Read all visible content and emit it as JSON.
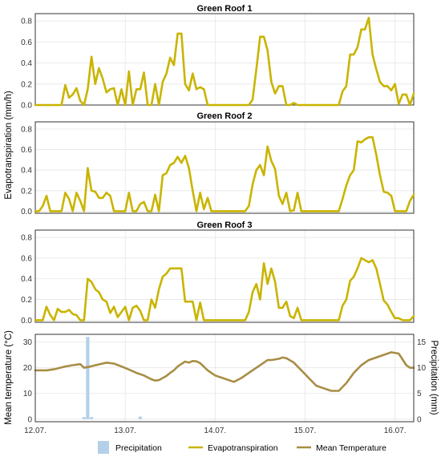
{
  "chart_data": [
    {
      "type": "line",
      "title": "Green Roof 1",
      "ylim": [
        0,
        0.87
      ],
      "yticks": [
        "0.0",
        "0.2",
        "0.4",
        "0.6",
        "0.8"
      ],
      "xlim": [
        0,
        101
      ],
      "series": [
        {
          "name": "Evapotranspiration",
          "color": "#c9b400",
          "x": [
            0,
            1,
            2,
            3,
            4,
            5,
            6,
            7,
            8,
            9,
            10,
            11,
            12,
            13,
            14,
            15,
            16,
            17,
            18,
            19,
            20,
            21,
            22,
            23,
            24,
            25,
            26,
            27,
            28,
            29,
            30,
            31,
            32,
            33,
            34,
            35,
            36,
            37,
            38,
            39,
            40,
            41,
            42,
            43,
            44,
            45,
            46,
            47,
            48,
            49,
            50,
            51,
            52,
            53,
            54,
            55,
            56,
            57,
            58,
            59,
            60,
            61,
            62,
            63,
            64,
            65,
            66,
            67,
            68,
            69,
            70,
            71,
            72,
            73,
            74,
            75,
            76,
            77,
            78,
            79,
            80,
            81,
            82,
            83,
            84,
            85,
            86,
            87,
            88,
            89,
            90,
            91,
            92,
            93,
            94,
            95,
            96,
            97,
            98,
            99,
            100,
            101
          ],
          "y": [
            0.0,
            0.0,
            0.0,
            0.0,
            0.0,
            0.0,
            0.0,
            0.0,
            0.19,
            0.07,
            0.1,
            0.16,
            0.04,
            0.0,
            0.15,
            0.46,
            0.2,
            0.35,
            0.25,
            0.12,
            0.15,
            0.16,
            0.0,
            0.15,
            0.0,
            0.32,
            0.0,
            0.15,
            0.15,
            0.31,
            0.0,
            0.0,
            0.2,
            0.0,
            0.22,
            0.3,
            0.45,
            0.38,
            0.68,
            0.68,
            0.2,
            0.14,
            0.3,
            0.15,
            0.17,
            0.15,
            0.0,
            0.0,
            0.0,
            0.0,
            0.0,
            0.0,
            0.0,
            0.0,
            0.0,
            0.0,
            0.0,
            0.0,
            0.05,
            0.34,
            0.65,
            0.65,
            0.52,
            0.22,
            0.11,
            0.18,
            0.18,
            0.0,
            0.0,
            0.02,
            0.0,
            0.0,
            0.0,
            0.0,
            0.0,
            0.0,
            0.0,
            0.0,
            0.0,
            0.0,
            0.0,
            0.0,
            0.13,
            0.18,
            0.48,
            0.48,
            0.55,
            0.72,
            0.72,
            0.83,
            0.48,
            0.34,
            0.22,
            0.18,
            0.18,
            0.14,
            0.2,
            0.01,
            0.1,
            0.1,
            0.0,
            0.11
          ]
        }
      ]
    },
    {
      "type": "line",
      "title": "Green Roof 2",
      "ylim": [
        -0.02,
        0.87
      ],
      "yticks": [
        "0.0",
        "0.2",
        "0.4",
        "0.6",
        "0.8"
      ],
      "xlim": [
        0,
        101
      ],
      "series": [
        {
          "name": "Evapotranspiration",
          "color": "#c9b400",
          "x": [
            0,
            1,
            2,
            3,
            4,
            5,
            6,
            7,
            8,
            9,
            10,
            11,
            12,
            13,
            14,
            15,
            16,
            17,
            18,
            19,
            20,
            21,
            22,
            23,
            24,
            25,
            26,
            27,
            28,
            29,
            30,
            31,
            32,
            33,
            34,
            35,
            36,
            37,
            38,
            39,
            40,
            41,
            42,
            43,
            44,
            45,
            46,
            47,
            48,
            49,
            50,
            51,
            52,
            53,
            54,
            55,
            56,
            57,
            58,
            59,
            60,
            61,
            62,
            63,
            64,
            65,
            66,
            67,
            68,
            69,
            70,
            71,
            72,
            73,
            74,
            75,
            76,
            77,
            78,
            79,
            80,
            81,
            82,
            83,
            84,
            85,
            86,
            87,
            88,
            89,
            90,
            91,
            92,
            93,
            94,
            95,
            96,
            97,
            98,
            99,
            100,
            101
          ],
          "y": [
            0.0,
            0.0,
            0.05,
            0.15,
            0.0,
            0.0,
            0.0,
            0.0,
            0.18,
            0.12,
            0.0,
            0.18,
            0.1,
            0.0,
            0.42,
            0.2,
            0.19,
            0.13,
            0.13,
            0.18,
            0.15,
            0.0,
            0.0,
            0.0,
            0.0,
            0.18,
            0.0,
            0.0,
            0.07,
            0.09,
            0.0,
            0.0,
            0.16,
            0.0,
            0.35,
            0.37,
            0.45,
            0.47,
            0.53,
            0.47,
            0.54,
            0.42,
            0.2,
            0.0,
            0.18,
            0.02,
            0.13,
            0.0,
            0.0,
            0.0,
            0.0,
            0.0,
            0.0,
            0.0,
            0.0,
            0.0,
            0.0,
            0.05,
            0.26,
            0.4,
            0.45,
            0.35,
            0.63,
            0.49,
            0.41,
            0.15,
            0.07,
            0.18,
            0.0,
            0.01,
            0.18,
            0.0,
            0.0,
            0.0,
            0.0,
            0.0,
            0.0,
            0.0,
            0.0,
            0.0,
            0.0,
            0.0,
            0.12,
            0.25,
            0.35,
            0.4,
            0.68,
            0.67,
            0.7,
            0.72,
            0.72,
            0.55,
            0.35,
            0.19,
            0.18,
            0.15,
            0.0,
            0.0,
            0.0,
            0.0,
            0.1,
            0.16
          ]
        }
      ]
    },
    {
      "type": "line",
      "title": "Green Roof 3",
      "ylim": [
        -0.02,
        0.87
      ],
      "yticks": [
        "0.0",
        "0.2",
        "0.4",
        "0.6",
        "0.8"
      ],
      "xlim": [
        0,
        101
      ],
      "series": [
        {
          "name": "Evapotranspiration",
          "color": "#c9b400",
          "x": [
            0,
            1,
            2,
            3,
            4,
            5,
            6,
            7,
            8,
            9,
            10,
            11,
            12,
            13,
            14,
            15,
            16,
            17,
            18,
            19,
            20,
            21,
            22,
            23,
            24,
            25,
            26,
            27,
            28,
            29,
            30,
            31,
            32,
            33,
            34,
            35,
            36,
            37,
            38,
            39,
            40,
            41,
            42,
            43,
            44,
            45,
            46,
            47,
            48,
            49,
            50,
            51,
            52,
            53,
            54,
            55,
            56,
            57,
            58,
            59,
            60,
            61,
            62,
            63,
            64,
            65,
            66,
            67,
            68,
            69,
            70,
            71,
            72,
            73,
            74,
            75,
            76,
            77,
            78,
            79,
            80,
            81,
            82,
            83,
            84,
            85,
            86,
            87,
            88,
            89,
            90,
            91,
            92,
            93,
            94,
            95,
            96,
            97,
            98,
            99,
            100,
            101
          ],
          "y": [
            0.0,
            0.0,
            0.0,
            0.13,
            0.05,
            0.0,
            0.11,
            0.08,
            0.08,
            0.1,
            0.06,
            0.05,
            0.0,
            0.0,
            0.4,
            0.37,
            0.3,
            0.27,
            0.2,
            0.18,
            0.07,
            0.13,
            0.03,
            0.08,
            0.13,
            0.0,
            0.12,
            0.14,
            0.09,
            0.0,
            0.0,
            0.2,
            0.12,
            0.3,
            0.42,
            0.45,
            0.5,
            0.5,
            0.5,
            0.5,
            0.18,
            0.18,
            0.18,
            0.0,
            0.17,
            0.0,
            0.0,
            0.0,
            0.0,
            0.0,
            0.0,
            0.0,
            0.0,
            0.0,
            0.0,
            0.0,
            0.0,
            0.08,
            0.27,
            0.35,
            0.2,
            0.55,
            0.35,
            0.5,
            0.37,
            0.12,
            0.12,
            0.18,
            0.04,
            0.02,
            0.12,
            0.0,
            0.0,
            0.0,
            0.0,
            0.0,
            0.0,
            0.0,
            0.0,
            0.0,
            0.0,
            0.0,
            0.14,
            0.2,
            0.38,
            0.42,
            0.5,
            0.6,
            0.58,
            0.56,
            0.58,
            0.5,
            0.35,
            0.19,
            0.15,
            0.08,
            0.02,
            0.02,
            0.0,
            0.0,
            0.0,
            0.04
          ]
        }
      ]
    },
    {
      "type": "bar+line",
      "ylabel_left": "Mean temperature (°C)",
      "ylabel_right": "Precipitation (mm)",
      "ylim_left": [
        -1,
        33
      ],
      "yticks_left": [
        "0",
        "10",
        "20",
        "30"
      ],
      "ylim_right": [
        -0.5,
        16.5
      ],
      "yticks_right": [
        "0",
        "5",
        "10",
        "15"
      ],
      "xlim": [
        0,
        101
      ],
      "xtick_positions": [
        0,
        24,
        48,
        72,
        96
      ],
      "xtick_labels": [
        "12.07.",
        "13.07.",
        "14.07.",
        "15.07.",
        "16.07."
      ],
      "series": [
        {
          "name": "Precipitation",
          "axis": "right",
          "color": "#b4d0e9",
          "x": [
            13,
            14,
            15,
            28
          ],
          "y": [
            0.4,
            16.0,
            0.4,
            0.5
          ]
        },
        {
          "name": "Mean Temperature",
          "axis": "left",
          "color": "#a88d45",
          "x": [
            0,
            3,
            5,
            8,
            10,
            12,
            13,
            15,
            17,
            19,
            21,
            23,
            25,
            27,
            29,
            31,
            32,
            33,
            35,
            36,
            37,
            38,
            39,
            40,
            41,
            42,
            43,
            44,
            46,
            48,
            50,
            52,
            53,
            55,
            57,
            59,
            61,
            62,
            63,
            65,
            66,
            67,
            69,
            71,
            73,
            75,
            77,
            79,
            81,
            83,
            85,
            87,
            89,
            91,
            93,
            95,
            97,
            99,
            100,
            101
          ],
          "y": [
            19,
            19,
            19.4,
            20.5,
            21,
            21.4,
            20,
            20.6,
            21.3,
            22,
            21.6,
            20.5,
            19.3,
            18,
            17,
            15.5,
            15,
            15.2,
            16.8,
            18,
            19,
            20.5,
            21.5,
            22.4,
            22,
            22.6,
            22.5,
            21.8,
            19,
            17,
            16,
            15,
            14.5,
            16,
            18,
            20,
            22,
            23,
            23,
            23.5,
            24,
            23.7,
            22,
            19,
            16,
            13,
            12,
            11,
            11,
            14,
            18,
            21,
            23,
            24,
            25,
            26,
            25.5,
            21,
            20,
            20
          ]
        }
      ]
    }
  ],
  "axes_text": {
    "ylabel_evap": "Evapotranspiration (mm/h)",
    "ylabel_left": "Mean temperature (°C)",
    "ylabel_right": "Precipitation (mm)"
  },
  "legend": {
    "items": [
      {
        "label": "Precipitation",
        "kind": "bar",
        "color": "#b4d0e9"
      },
      {
        "label": "Evapotranspiration",
        "kind": "line",
        "color": "#c9b400"
      },
      {
        "label": "Mean Temperature",
        "kind": "line",
        "color": "#a88d45"
      }
    ]
  }
}
